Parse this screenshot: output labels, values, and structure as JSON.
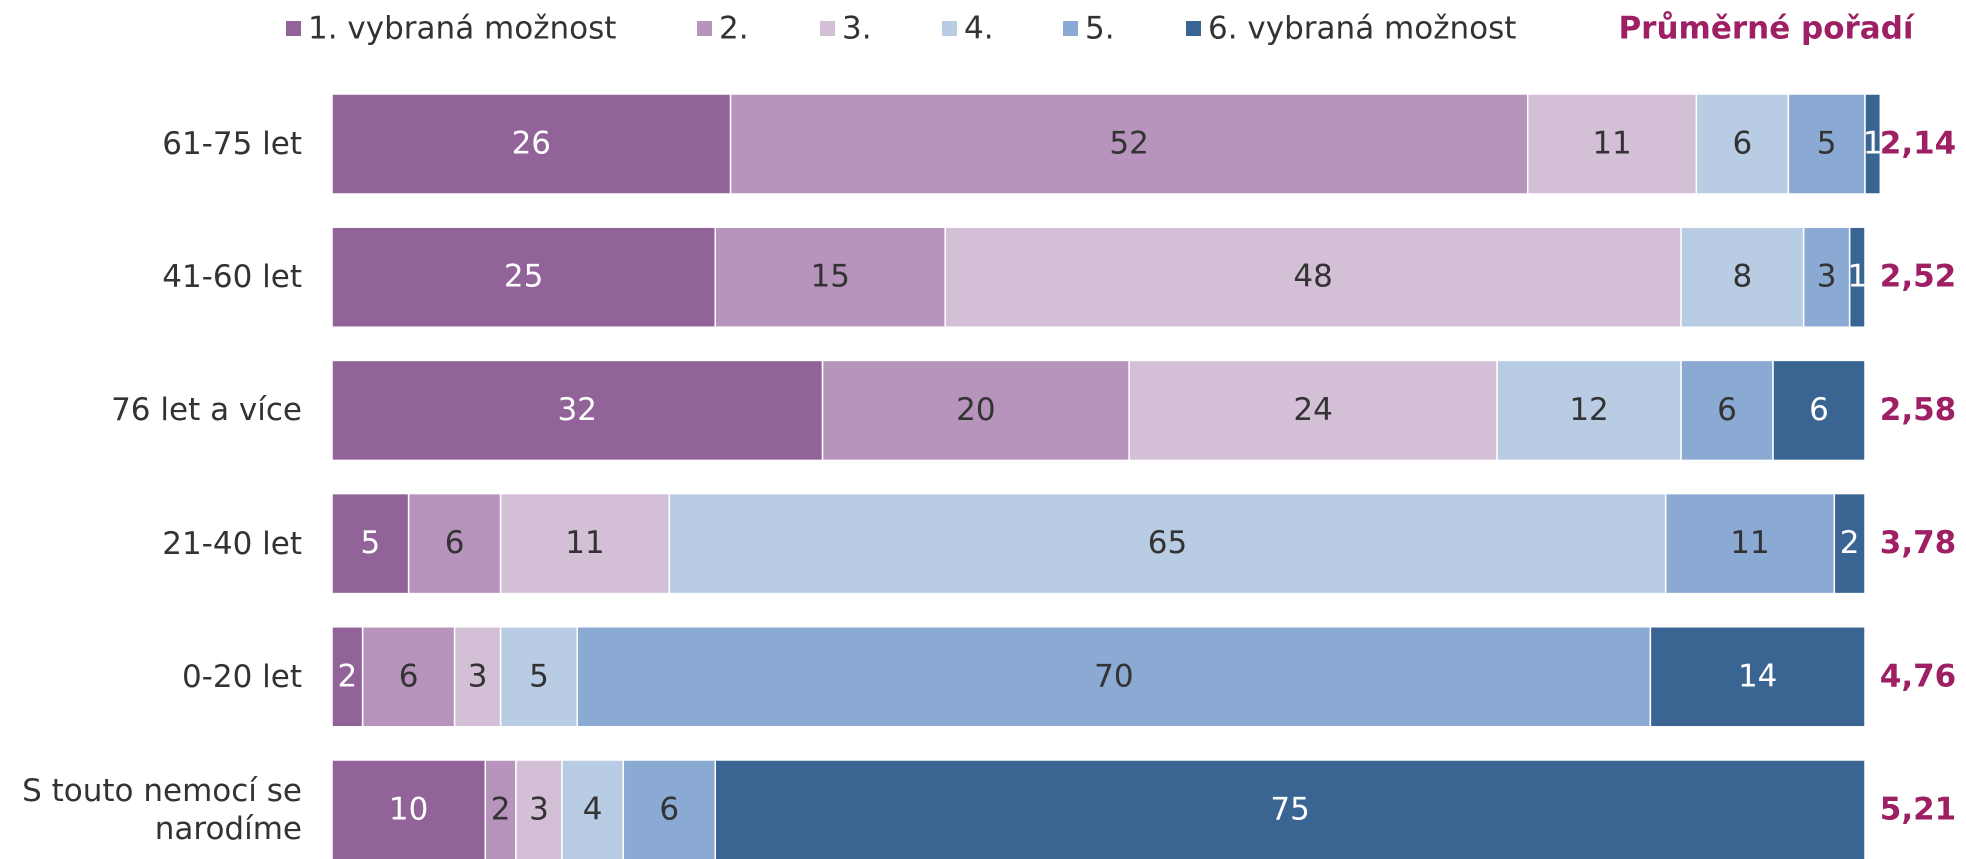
{
  "chart_data": {
    "type": "stacked_barh",
    "categories": [
      "61-75 let",
      "41-60 let",
      "76 let a více",
      "21-40 let",
      "0-20 let",
      "S touto nemocí se narodíme"
    ],
    "series": [
      {
        "name": "1. vybraná možnost",
        "color": "#926399",
        "values": [
          26,
          25,
          32,
          5,
          2,
          10
        ]
      },
      {
        "name": "2.",
        "color": "#b794bc",
        "values": [
          52,
          15,
          20,
          6,
          6,
          2
        ]
      },
      {
        "name": "3.",
        "color": "#d3bfd6",
        "values": [
          11,
          48,
          24,
          11,
          3,
          3
        ]
      },
      {
        "name": "4.",
        "color": "#b8cce4",
        "values": [
          6,
          8,
          12,
          65,
          5,
          4
        ]
      },
      {
        "name": "5.",
        "color": "#8aaad4",
        "values": [
          5,
          3,
          6,
          11,
          70,
          6
        ]
      },
      {
        "name": "6. vybraná možnost",
        "color": "#3a6593",
        "values": [
          1,
          1,
          6,
          2,
          14,
          75
        ]
      }
    ],
    "xlim": [
      0,
      100
    ],
    "average": {
      "title": "Průměrné pořadí",
      "color": "#9e1f63",
      "values": [
        2.14,
        2.52,
        2.58,
        3.78,
        4.76,
        5.21
      ],
      "value_labels": [
        "2,14",
        "2,52",
        "2,58",
        "3,78",
        "4,76",
        "5,21"
      ]
    }
  }
}
